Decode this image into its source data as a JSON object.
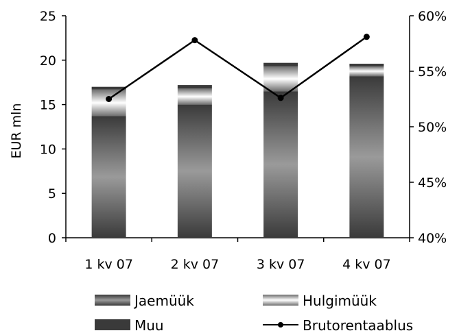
{
  "chart_data": {
    "type": "bar",
    "stacked": true,
    "categories": [
      "1 kv 07",
      "2 kv 07",
      "3 kv 07",
      "4 kv 07"
    ],
    "series": [
      {
        "name": "Jaemüük",
        "axis": "left",
        "values": [
          13.7,
          15.0,
          16.5,
          18.2
        ]
      },
      {
        "name": "Hulgimüük",
        "axis": "left",
        "values": [
          3.0,
          1.8,
          2.8,
          1.1
        ]
      },
      {
        "name": "Muu",
        "axis": "left",
        "values": [
          0.3,
          0.4,
          0.4,
          0.3
        ]
      },
      {
        "name": "Brutorentaablus",
        "type": "line",
        "axis": "right",
        "values": [
          52.5,
          57.8,
          52.6,
          58.1
        ]
      }
    ],
    "title": "",
    "xlabel": "",
    "ylabel": "EUR mln",
    "ylim": [
      0,
      25
    ],
    "yticks": [
      0,
      5,
      10,
      15,
      20,
      25
    ],
    "y2lim": [
      40,
      60
    ],
    "y2ticks": [
      "40%",
      "45%",
      "50%",
      "55%",
      "60%"
    ],
    "grid": false,
    "legend": "bottom",
    "colors": {
      "jaemuuk_dark": "#3a3a3a",
      "jaemuuk_light": "#9a9a9a",
      "hulgimuuk_dark": "#6e6e6e",
      "hulgimuuk_light": "#ffffff",
      "muu": "#3a3a3a",
      "line": "#000000"
    }
  }
}
